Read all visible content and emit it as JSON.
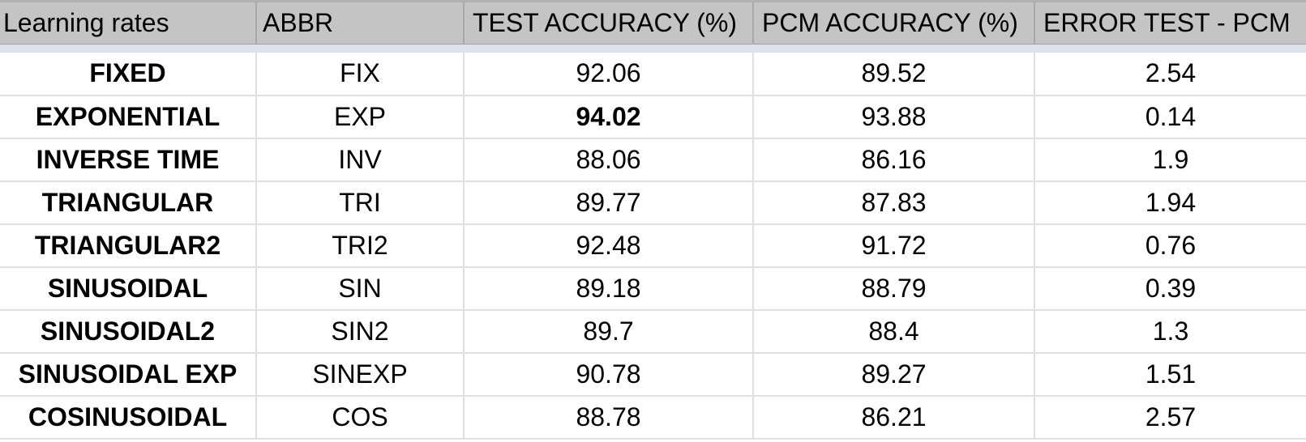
{
  "table": {
    "columns": [
      "Learning rates",
      "ABBR",
      "TEST ACCURACY (%)",
      "PCM ACCURACY (%)",
      "ERROR TEST - PCM"
    ],
    "rows": [
      [
        "FIXED",
        "FIX",
        "92.06",
        "89.52",
        "2.54"
      ],
      [
        "EXPONENTIAL",
        "EXP",
        "94.02",
        "93.88",
        "0.14"
      ],
      [
        "INVERSE TIME",
        "INV",
        "88.06",
        "86.16",
        "1.9"
      ],
      [
        "TRIANGULAR",
        "TRI",
        "89.77",
        "87.83",
        "1.94"
      ],
      [
        "TRIANGULAR2",
        "TRI2",
        "92.48",
        "91.72",
        "0.76"
      ],
      [
        "SINUSOIDAL",
        "SIN",
        "89.18",
        "88.79",
        "0.39"
      ],
      [
        "SINUSOIDAL2",
        "SIN2",
        "89.7",
        "88.4",
        "1.3"
      ],
      [
        "SINUSOIDAL EXP",
        "SINEXP",
        "90.78",
        "89.27",
        "1.51"
      ],
      [
        "COSINUSOIDAL",
        "COS",
        "88.78",
        "86.21",
        "2.57"
      ]
    ],
    "bold_cells": [
      [
        1,
        2
      ]
    ]
  },
  "colors": {
    "header_bg": "#c4c4c4",
    "freeze_band": "#dce3ec",
    "grid_line": "#e0e0e0"
  }
}
